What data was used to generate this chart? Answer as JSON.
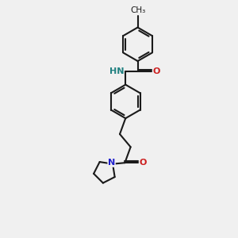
{
  "background_color": "#f0f0f0",
  "bond_color": "#1a1a1a",
  "nitrogen_color": "#2020cc",
  "oxygen_color": "#cc2020",
  "nh_color": "#208080",
  "line_width": 1.5,
  "figsize": [
    3.0,
    3.0
  ],
  "dpi": 100,
  "xlim": [
    0,
    10
  ],
  "ylim": [
    0,
    10
  ]
}
